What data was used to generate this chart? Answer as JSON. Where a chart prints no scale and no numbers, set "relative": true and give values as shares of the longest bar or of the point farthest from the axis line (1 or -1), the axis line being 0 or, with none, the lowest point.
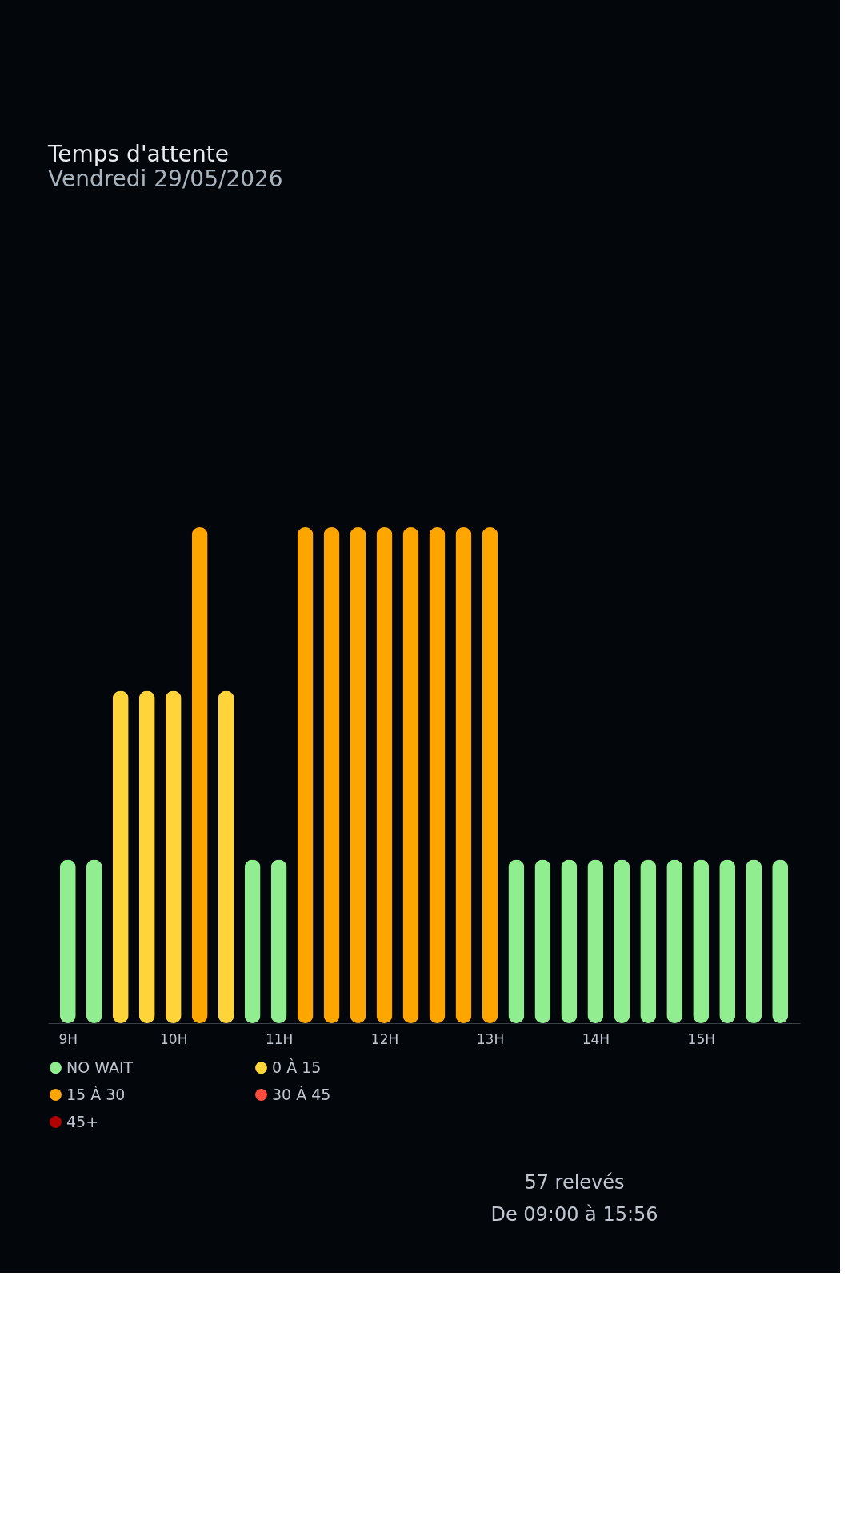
{
  "chart_data": {
    "type": "bar",
    "title": "Temps d'attente",
    "subtitle": "Vendredi 29/05/2026",
    "relative": true,
    "x": [
      9,
      9.25,
      9.5,
      9.75,
      10,
      10.25,
      10.5,
      10.75,
      11,
      11.25,
      11.5,
      11.75,
      12,
      12.25,
      12.5,
      12.75,
      13,
      13.25,
      13.5,
      13.75,
      14,
      14.25,
      14.5,
      14.75,
      15,
      15.25,
      15.5,
      15.75
    ],
    "xlim": [
      8.85,
      15.9
    ],
    "xticks": [
      {
        "value": 9,
        "label": "9H"
      },
      {
        "value": 10,
        "label": "10H"
      },
      {
        "value": 11,
        "label": "11H"
      },
      {
        "value": 12,
        "label": "12H"
      },
      {
        "value": 13,
        "label": "13H"
      },
      {
        "value": 14,
        "label": "14H"
      },
      {
        "value": 15,
        "label": "15H"
      }
    ],
    "series": [
      {
        "name": "NO WAIT",
        "color": "#90ee90",
        "values": [
          0.33,
          0.33,
          null,
          null,
          null,
          null,
          null,
          0.33,
          0.33,
          null,
          null,
          null,
          null,
          null,
          null,
          null,
          null,
          0.33,
          0.33,
          0.33,
          0.33,
          0.33,
          0.33,
          0.33,
          0.33,
          0.33,
          0.33,
          0.33
        ]
      },
      {
        "name": "0 À 15",
        "color": "#ffd43b",
        "values": [
          null,
          null,
          0.67,
          0.67,
          0.67,
          null,
          0.67,
          null,
          null,
          null,
          null,
          null,
          null,
          null,
          null,
          null,
          null,
          null,
          null,
          null,
          null,
          null,
          null,
          null,
          null,
          null,
          null,
          null
        ]
      },
      {
        "name": "15 À 30",
        "color": "#ffa500",
        "values": [
          null,
          null,
          null,
          null,
          null,
          1,
          null,
          null,
          null,
          1,
          1,
          1,
          1,
          1,
          1,
          1,
          1,
          null,
          null,
          null,
          null,
          null,
          null,
          null,
          null,
          null,
          null,
          null
        ]
      },
      {
        "name": "30 À 45",
        "color": "#ff4d3d",
        "values": [
          null,
          null,
          null,
          null,
          null,
          null,
          null,
          null,
          null,
          null,
          null,
          null,
          null,
          null,
          null,
          null,
          null,
          null,
          null,
          null,
          null,
          null,
          null,
          null,
          null,
          null,
          null,
          null
        ]
      },
      {
        "name": "45+",
        "color": "#b30000",
        "values": [
          null,
          null,
          null,
          null,
          null,
          null,
          null,
          null,
          null,
          null,
          null,
          null,
          null,
          null,
          null,
          null,
          null,
          null,
          null,
          null,
          null,
          null,
          null,
          null,
          null,
          null,
          null,
          null
        ]
      }
    ],
    "legend": "bottom",
    "grid": false,
    "annotations": [
      "57 relevés",
      "De 09:00 à 15:56"
    ]
  }
}
